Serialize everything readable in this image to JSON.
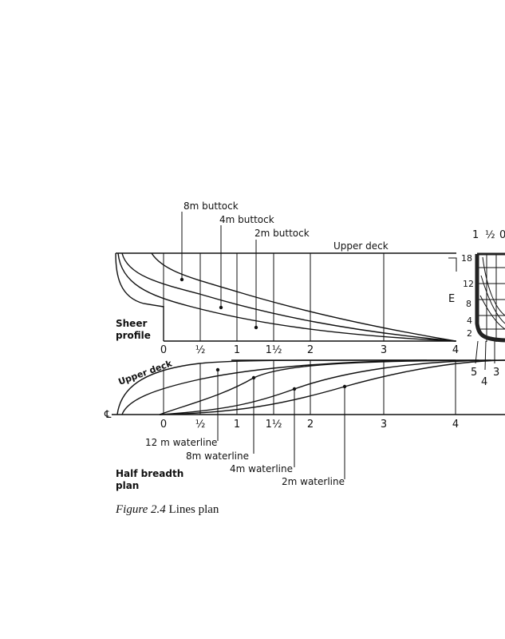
{
  "figure": {
    "number_label": "Figure 2.4",
    "caption": "Lines plan"
  },
  "sheer_profile": {
    "title_line1": "Sheer",
    "title_line2": "profile",
    "upper_deck_label": "Upper deck",
    "buttocks": [
      "8m buttock",
      "4m buttock",
      "2m buttock"
    ],
    "stations": [
      "0",
      "½",
      "1",
      "1½",
      "2",
      "3",
      "4"
    ]
  },
  "half_breadth_plan": {
    "title_line1": "Half breadth",
    "title_line2": "plan",
    "upper_deck_label": "Upper deck",
    "centreline_label": "℄",
    "waterlines": [
      "12 m waterline",
      "8m waterline",
      "4m waterline",
      "2m waterline"
    ],
    "stations": [
      "0",
      "½",
      "1",
      "1½",
      "2",
      "3",
      "4"
    ]
  },
  "body_plan": {
    "unit_label": "E",
    "height_marks": [
      "18",
      "12",
      "8",
      "4",
      "2"
    ],
    "top_stations": [
      "1",
      "½",
      "0"
    ],
    "bottom_stations": [
      "5",
      "4",
      "3"
    ]
  }
}
